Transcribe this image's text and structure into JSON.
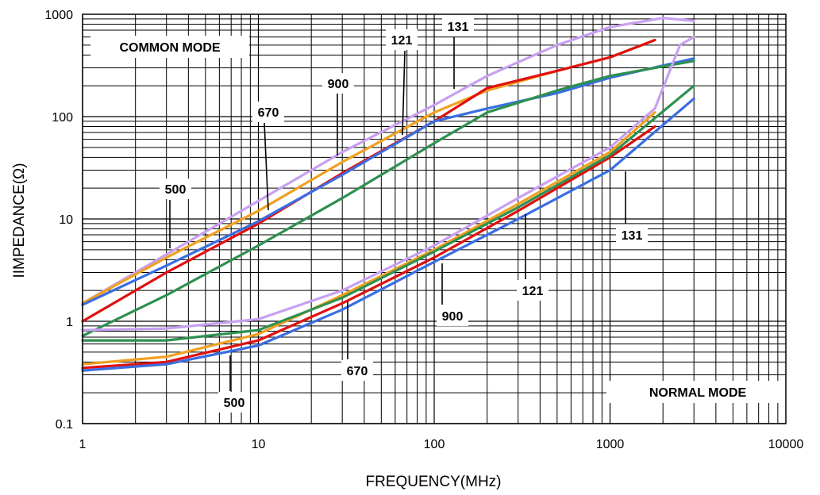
{
  "chart_data": {
    "type": "line",
    "title": "",
    "xlabel": "FREQUENCY(MHz)",
    "ylabel": "IIMPEDANCE(Ω)",
    "xscale": "log",
    "yscale": "log",
    "xlim": [
      1,
      10000
    ],
    "ylim": [
      0.1,
      1000
    ],
    "grid": true,
    "x_ticks": [
      "1",
      "10",
      "100",
      "1000",
      "10000"
    ],
    "y_ticks": [
      "0.1",
      "1",
      "10",
      "100",
      "1000"
    ],
    "colors": {
      "131": "#c8a0f0",
      "121": "#f0a020",
      "900": "#e01010",
      "670": "#3a6ee0",
      "500": "#2e9050"
    },
    "series": [
      {
        "name": "131",
        "mode": "common",
        "x": [
          1,
          3,
          10,
          30,
          100,
          200,
          500,
          1000,
          2000,
          3000
        ],
        "y": [
          1.5,
          4.5,
          15,
          45,
          130,
          250,
          500,
          750,
          920,
          860
        ]
      },
      {
        "name": "121",
        "mode": "common",
        "x": [
          1,
          3,
          10,
          30,
          100,
          200,
          500,
          1000,
          1800
        ],
        "y": [
          1.5,
          4.2,
          12,
          36,
          110,
          180,
          280,
          380,
          560
        ]
      },
      {
        "name": "900",
        "mode": "common",
        "x": [
          1,
          3,
          10,
          30,
          100,
          200,
          500,
          1000,
          1800
        ],
        "y": [
          1.0,
          3.0,
          9,
          28,
          90,
          190,
          280,
          380,
          560
        ]
      },
      {
        "name": "670",
        "mode": "common",
        "x": [
          1,
          3,
          10,
          30,
          100,
          200,
          500,
          1000,
          3000
        ],
        "y": [
          1.45,
          3.5,
          9.5,
          27,
          90,
          120,
          170,
          240,
          370
        ]
      },
      {
        "name": "500",
        "mode": "common",
        "x": [
          1,
          3,
          10,
          30,
          100,
          200,
          500,
          1000,
          3000
        ],
        "y": [
          0.72,
          1.8,
          5.5,
          16,
          55,
          110,
          180,
          250,
          350
        ]
      },
      {
        "name": "131",
        "mode": "normal",
        "x": [
          1,
          3,
          10,
          30,
          100,
          300,
          1000,
          1800,
          2500,
          3000
        ],
        "y": [
          0.82,
          0.85,
          1.05,
          2.0,
          5.5,
          16,
          50,
          120,
          500,
          600
        ]
      },
      {
        "name": "121",
        "mode": "normal",
        "x": [
          1,
          3,
          10,
          30,
          100,
          300,
          1000,
          1800
        ],
        "y": [
          0.38,
          0.45,
          0.75,
          1.8,
          5.0,
          14,
          45,
          110
        ]
      },
      {
        "name": "900",
        "mode": "normal",
        "x": [
          1,
          3,
          10,
          30,
          100,
          300,
          1000,
          1800
        ],
        "y": [
          0.35,
          0.4,
          0.65,
          1.5,
          4.2,
          12,
          40,
          80
        ]
      },
      {
        "name": "670",
        "mode": "normal",
        "x": [
          1,
          3,
          10,
          30,
          100,
          300,
          1000,
          3000
        ],
        "y": [
          0.33,
          0.38,
          0.58,
          1.3,
          3.8,
          10,
          30,
          150
        ]
      },
      {
        "name": "500",
        "mode": "normal",
        "x": [
          1,
          3,
          10,
          30,
          100,
          300,
          1000,
          3000
        ],
        "y": [
          0.65,
          0.65,
          0.82,
          1.7,
          4.8,
          13,
          42,
          200
        ]
      }
    ],
    "annotations": [
      {
        "text": "COMMON MODE",
        "kind": "mode"
      },
      {
        "text": "NORMAL MODE",
        "kind": "mode"
      },
      {
        "text": "131",
        "kind": "series"
      },
      {
        "text": "121",
        "kind": "series"
      },
      {
        "text": "900",
        "kind": "series"
      },
      {
        "text": "670",
        "kind": "series"
      },
      {
        "text": "500",
        "kind": "series"
      },
      {
        "text": "131",
        "kind": "series"
      },
      {
        "text": "121",
        "kind": "series"
      },
      {
        "text": "900",
        "kind": "series"
      },
      {
        "text": "670",
        "kind": "series"
      },
      {
        "text": "500",
        "kind": "series"
      }
    ]
  }
}
